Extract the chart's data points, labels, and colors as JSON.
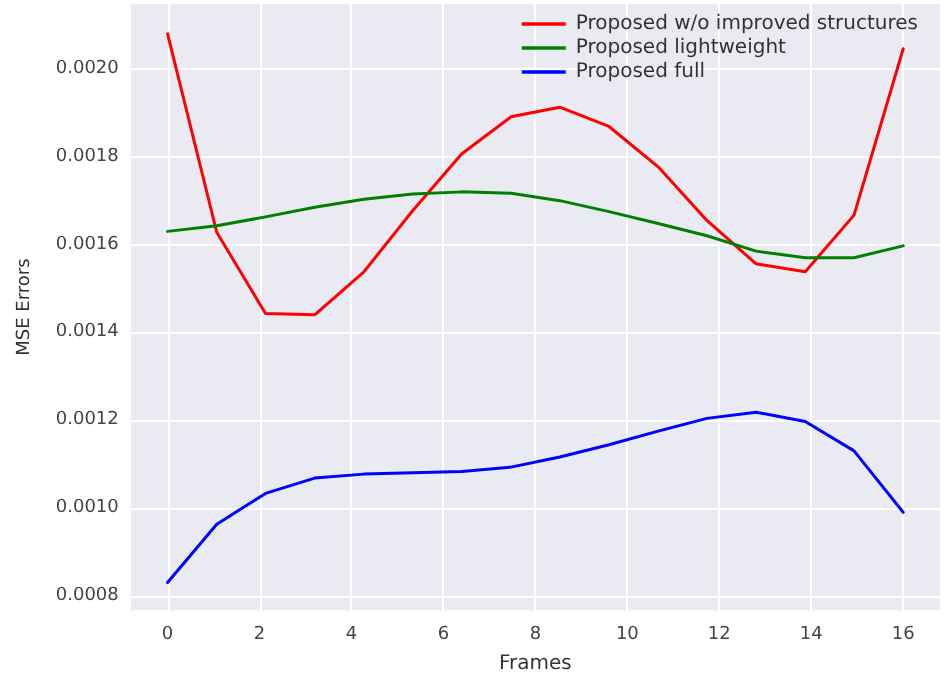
{
  "chart_data": {
    "type": "line",
    "xlabel": "Frames",
    "ylabel": "MSE Errors",
    "x": [
      0,
      1.07,
      2.13,
      3.2,
      4.27,
      5.33,
      6.4,
      7.47,
      8.53,
      9.6,
      10.67,
      11.73,
      12.8,
      13.87,
      14.93,
      16
    ],
    "series": [
      {
        "name": "Proposed w/o improved structures",
        "color": "#ff0000",
        "values": [
          0.00208,
          0.001628,
          0.001443,
          0.00144,
          0.001538,
          0.001677,
          0.001807,
          0.001891,
          0.001913,
          0.001869,
          0.001777,
          0.001655,
          0.001556,
          0.001538,
          0.001667,
          0.002046
        ]
      },
      {
        "name": "Proposed lightweight",
        "color": "#008000",
        "values": [
          0.00163,
          0.001643,
          0.001663,
          0.001685,
          0.001703,
          0.001715,
          0.00172,
          0.001717,
          0.0017,
          0.001675,
          0.001648,
          0.00162,
          0.001585,
          0.00157,
          0.00157,
          0.001597
        ]
      },
      {
        "name": "Proposed full",
        "color": "#0000ff",
        "values": [
          0.00083,
          0.000963,
          0.001033,
          0.001068,
          0.001077,
          0.00108,
          0.001083,
          0.001093,
          0.001116,
          0.001144,
          0.001175,
          0.001204,
          0.001218,
          0.001197,
          0.00113,
          0.00099
        ]
      }
    ],
    "xlim": [
      -0.8,
      16.8
    ],
    "xticks": [
      0,
      2,
      4,
      6,
      8,
      10,
      12,
      14,
      16
    ],
    "ylim": [
      0.000767,
      0.002148
    ],
    "yticks": [
      {
        "value": 0.0008,
        "label": "0.0008"
      },
      {
        "value": 0.001,
        "label": "0.0010"
      },
      {
        "value": 0.0012,
        "label": "0.0012"
      },
      {
        "value": 0.0014,
        "label": "0.0014"
      },
      {
        "value": 0.0016,
        "label": "0.0016"
      },
      {
        "value": 0.0018,
        "label": "0.0018"
      },
      {
        "value": 0.002,
        "label": "0.0020"
      }
    ],
    "grid": true,
    "legend": "top right",
    "marker": "none",
    "line_style": "solid"
  }
}
